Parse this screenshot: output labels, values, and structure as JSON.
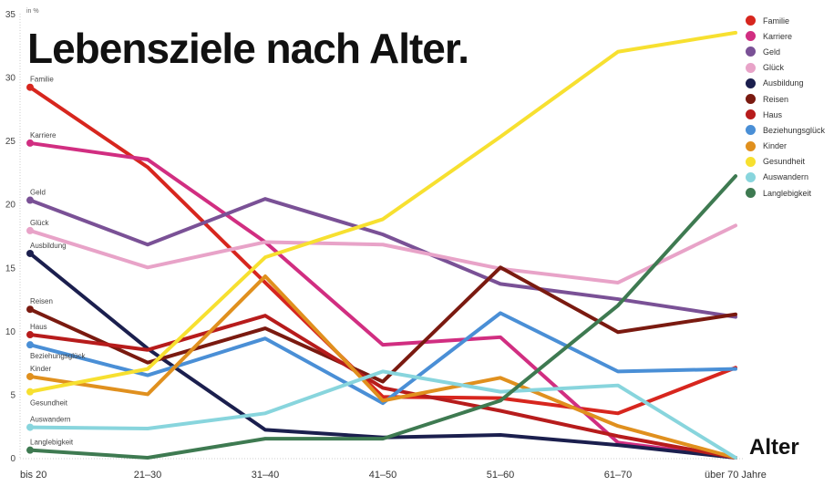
{
  "chart_data": {
    "type": "line",
    "title": "Lebensziele nach Alter.",
    "ylabel": "in %",
    "xlabel": "Alter",
    "categories": [
      "bis 20",
      "21–30",
      "31–40",
      "41–50",
      "51–60",
      "61–70",
      "über 70 Jahre"
    ],
    "ylim": [
      0,
      35
    ],
    "yticks": [
      0,
      5,
      10,
      15,
      20,
      25,
      30,
      35
    ],
    "grid": false,
    "legend": "top-right",
    "series": [
      {
        "name": "Familie",
        "color": "#d7261e",
        "values": [
          29.2,
          22.9,
          13.8,
          4.8,
          4.7,
          3.5,
          7.1
        ]
      },
      {
        "name": "Karriere",
        "color": "#d12e81",
        "values": [
          24.8,
          23.5,
          17.0,
          8.9,
          9.5,
          1.2,
          0
        ]
      },
      {
        "name": "Geld",
        "color": "#7a5196",
        "values": [
          20.3,
          16.8,
          20.4,
          17.6,
          13.7,
          12.5,
          11.1
        ]
      },
      {
        "name": "Glück",
        "color": "#e8a3c8",
        "values": [
          17.9,
          15.0,
          17.0,
          16.8,
          14.9,
          13.8,
          18.3
        ]
      },
      {
        "name": "Ausbildung",
        "color": "#1b1f4e",
        "values": [
          16.1,
          8.6,
          2.2,
          1.6,
          1.8,
          1.0,
          0
        ]
      },
      {
        "name": "Reisen",
        "color": "#7a1a10",
        "values": [
          11.7,
          7.5,
          10.2,
          6.0,
          15.0,
          9.9,
          11.3
        ]
      },
      {
        "name": "Haus",
        "color": "#b71c1c",
        "values": [
          9.7,
          8.5,
          11.2,
          5.5,
          3.7,
          1.7,
          0
        ]
      },
      {
        "name": "Beziehungsglück",
        "color": "#4a8fd6",
        "values": [
          8.9,
          6.5,
          9.4,
          4.3,
          11.4,
          6.8,
          7.0
        ]
      },
      {
        "name": "Kinder",
        "color": "#e0901e",
        "values": [
          6.4,
          5.0,
          14.3,
          4.5,
          6.3,
          2.5,
          0
        ]
      },
      {
        "name": "Gesundheit",
        "color": "#f7e030",
        "values": [
          5.2,
          7.0,
          15.8,
          18.8,
          25.3,
          32.0,
          33.5
        ]
      },
      {
        "name": "Auswandern",
        "color": "#88d5dd",
        "values": [
          2.4,
          2.3,
          3.5,
          6.8,
          5.2,
          5.7,
          0
        ]
      },
      {
        "name": "Langlebigkeit",
        "color": "#3e7a51",
        "values": [
          0.6,
          0,
          1.5,
          1.5,
          4.5,
          12.0,
          22.2
        ]
      }
    ]
  }
}
